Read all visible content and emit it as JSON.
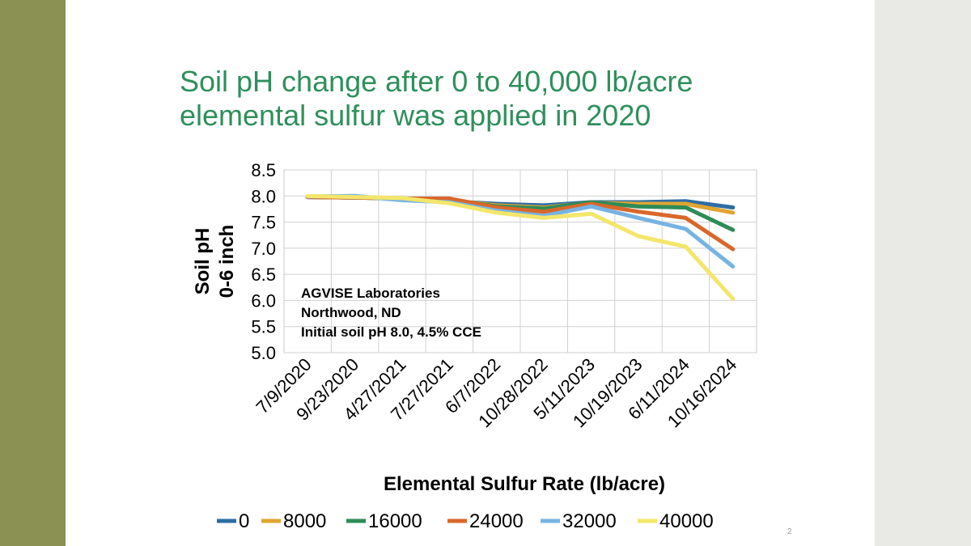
{
  "slide": {
    "title_lines": [
      "Soil pH change after 0 to 40,000 lb/acre",
      "elemental sulfur was applied in 2020"
    ],
    "slide_number": "2",
    "colors": {
      "left_band": "#8a9152",
      "right_band": "#e9e9e5",
      "title": "#2f8f5c"
    }
  },
  "chart_data": {
    "type": "line",
    "xlabel": "Elemental Sulfur Rate (lb/acre)",
    "ylabel_lines": [
      "Soil pH",
      "0-6 inch"
    ],
    "categories": [
      "7/9/2020",
      "9/23/2020",
      "4/27/2021",
      "7/27/2021",
      "6/7/2022",
      "10/28/2022",
      "5/11/2023",
      "10/19/2023",
      "6/11/2024",
      "10/16/2024"
    ],
    "ylim": [
      5.0,
      8.5
    ],
    "yticks": [
      "8.5",
      "8.0",
      "7.5",
      "7.0",
      "6.5",
      "6.0",
      "5.5",
      "5.0"
    ],
    "ytick_values": [
      8.5,
      8.0,
      7.5,
      7.0,
      6.5,
      6.0,
      5.5,
      5.0
    ],
    "grid": true,
    "legend_position": "bottom",
    "annotation_lines": [
      "AGVISE Laboratories",
      "Northwood, ND",
      "Initial soil pH 8.0, 4.5% CCE"
    ],
    "series": [
      {
        "name": "0",
        "color": "#2e6da4",
        "values": [
          7.98,
          7.97,
          7.95,
          7.9,
          7.85,
          7.82,
          7.88,
          7.88,
          7.9,
          7.78
        ]
      },
      {
        "name": "8000",
        "color": "#e0a531",
        "values": [
          7.99,
          7.98,
          7.95,
          7.92,
          7.82,
          7.78,
          7.87,
          7.85,
          7.85,
          7.68
        ]
      },
      {
        "name": "16000",
        "color": "#2e8b57",
        "values": [
          7.98,
          7.97,
          7.95,
          7.93,
          7.8,
          7.76,
          7.88,
          7.8,
          7.78,
          7.35
        ]
      },
      {
        "name": "24000",
        "color": "#d9672b",
        "values": [
          7.98,
          7.97,
          7.95,
          7.95,
          7.78,
          7.7,
          7.85,
          7.7,
          7.58,
          6.98
        ]
      },
      {
        "name": "32000",
        "color": "#76b3e2",
        "values": [
          7.99,
          8.0,
          7.92,
          7.88,
          7.72,
          7.62,
          7.8,
          7.58,
          7.37,
          6.65
        ]
      },
      {
        "name": "40000",
        "color": "#f3e66a",
        "values": [
          8.0,
          7.98,
          7.96,
          7.86,
          7.68,
          7.58,
          7.66,
          7.23,
          7.03,
          6.03
        ]
      }
    ]
  }
}
